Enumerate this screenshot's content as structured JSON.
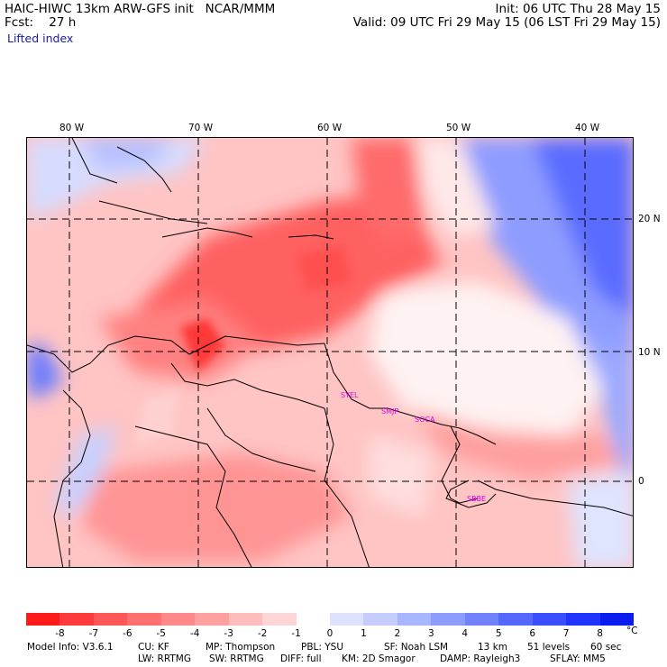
{
  "header": {
    "model": "HAIC-HIWC 13km ARW-GFS init   NCAR/MMM",
    "fcst": "Fcst:    27 h",
    "field": "Lifted index",
    "init": "Init: 06 UTC Thu 28 May 15",
    "valid": "Valid: 09 UTC Fri 29 May 15 (06 LST Fri 29 May 15)"
  },
  "map": {
    "lon_labels": [
      "80 W",
      "70 W",
      "60 W",
      "50 W",
      "40 W"
    ],
    "lat_labels": [
      "20 N",
      "10 N",
      "0"
    ],
    "stations": [
      "SYEL",
      "SMJP",
      "SOCA",
      "SBBE"
    ]
  },
  "colorbar": {
    "labels": [
      "-8",
      "-7",
      "-6",
      "-5",
      "-4",
      "-3",
      "-2",
      "-1",
      "0",
      "1",
      "2",
      "3",
      "4",
      "5",
      "6",
      "7",
      "8"
    ],
    "unit": "°C",
    "colors": [
      "#ff1a1a",
      "#ff3a3a",
      "#ff5757",
      "#ff7070",
      "#ff8888",
      "#ffa0a0",
      "#ffbcbc",
      "#ffd6d6",
      "#ffffff",
      "#dde3ff",
      "#c5cdff",
      "#a8b5ff",
      "#8c9cff",
      "#7082ff",
      "#5468ff",
      "#3a4eff",
      "#1f34ff",
      "#0a1cf0"
    ]
  },
  "footer": {
    "line1_model": "Model Info: V3.6.1",
    "line1_cu": "CU: KF",
    "line1_mp": "MP: Thompson",
    "line1_pbl": "PBL: YSU",
    "line1_sf": "SF: Noah LSM",
    "line1_res": "13 km",
    "line1_levels": "51 levels",
    "line1_dt": "60 sec",
    "line2_lw": "LW: RRTMG",
    "line2_sw": "SW: RRTMG",
    "line2_diff": "DIFF: full",
    "line2_km": "KM: 2D Smagor",
    "line2_damp": "DAMP: Rayleigh3",
    "line2_sflay": "SFLAY: MM5"
  }
}
